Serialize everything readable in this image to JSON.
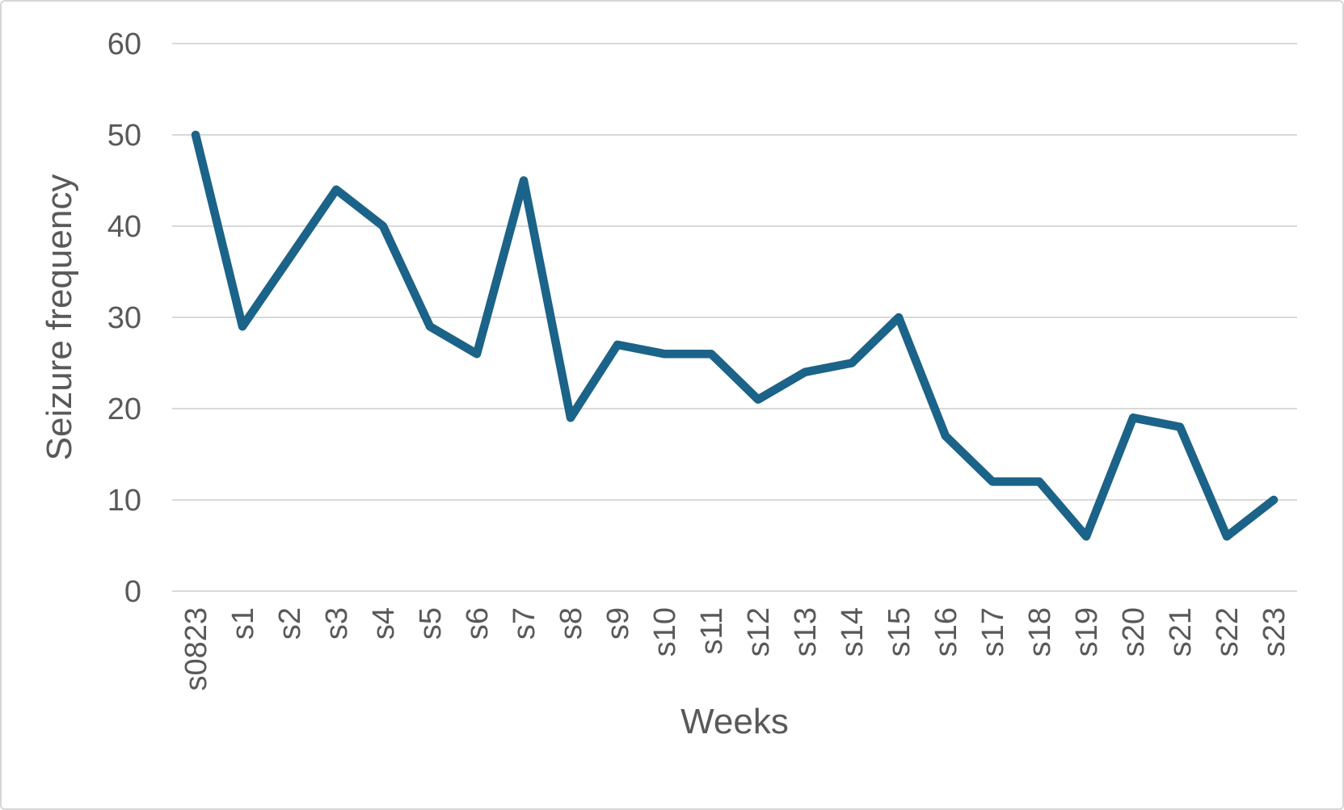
{
  "chart_data": {
    "type": "line",
    "title": "",
    "xlabel": "Weeks",
    "ylabel": "Seizure frequency",
    "categories": [
      "s0823",
      "s1",
      "s2",
      "s3",
      "s4",
      "s5",
      "s6",
      "s7",
      "s8",
      "s9",
      "s10",
      "s11",
      "s12",
      "s13",
      "s14",
      "s15",
      "s16",
      "s17",
      "s18",
      "s19",
      "s20",
      "s21",
      "s22",
      "s23"
    ],
    "series": [
      {
        "name": "Seizure frequency",
        "values": [
          50,
          29,
          36.5,
          44,
          40,
          29,
          26,
          45,
          19,
          27,
          26,
          26,
          21,
          24,
          25,
          30,
          17,
          12,
          12,
          6,
          19,
          18,
          6,
          10
        ]
      }
    ],
    "ylim": [
      0,
      60
    ],
    "yticks": [
      0,
      10,
      20,
      30,
      40,
      50,
      60
    ],
    "grid": true,
    "legend_position": "none",
    "colors": {
      "line": "#1B6388",
      "grid": "#D9D9D9",
      "text": "#595959",
      "border": "#D6D6D6"
    }
  }
}
